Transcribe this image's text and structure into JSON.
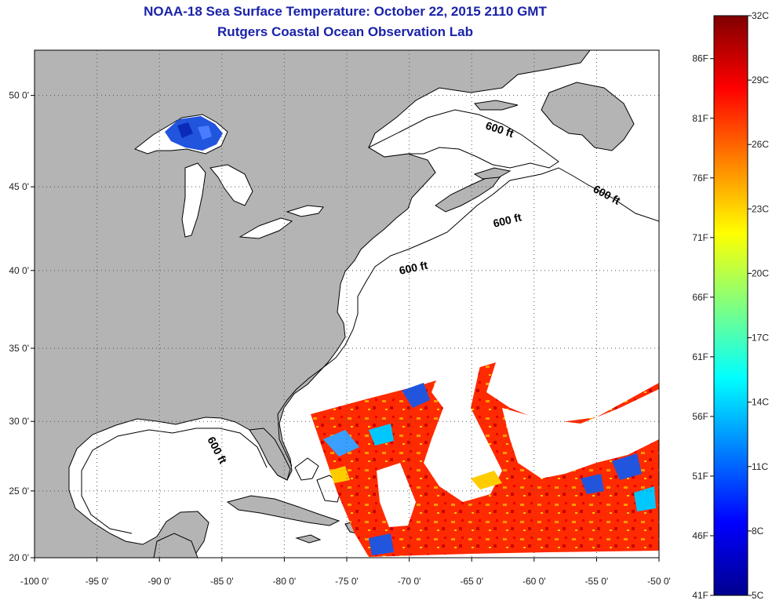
{
  "title": "NOAA-18 Sea Surface Temperature:  October 22, 2015 2110 GMT",
  "subtitle": "Rutgers Coastal Ocean Observation Lab",
  "lat_labels": [
    "50 0'",
    "45 0'",
    "40 0'",
    "35 0'",
    "30 0'",
    "25 0'",
    "20 0'"
  ],
  "lon_labels": [
    "-100 0'",
    "-95 0'",
    "-90 0'",
    "-85 0'",
    "-80 0'",
    "-75 0'",
    "-70 0'",
    "-65 0'",
    "-60 0'",
    "-55 0'",
    "-50 0'"
  ],
  "isobath_label": "600 ft",
  "colorbar": {
    "celsius": [
      "32C",
      "29C",
      "26C",
      "23C",
      "20C",
      "17C",
      "14C",
      "11C",
      "8C",
      "5C"
    ],
    "fahrenheit": [
      "86F",
      "81F",
      "76F",
      "71F",
      "66F",
      "61F",
      "56F",
      "51F",
      "46F",
      "41F"
    ],
    "colors": [
      "#00008f",
      "#0000ff",
      "#0080ff",
      "#00ffff",
      "#80ff80",
      "#ffff00",
      "#ff8000",
      "#ff0000",
      "#800000"
    ]
  },
  "colors": {
    "land": "#b4b4b4",
    "ocean": "#ffffff",
    "title": "#1a22a8",
    "warm": "#ff2200",
    "cool": "#2255dd"
  }
}
